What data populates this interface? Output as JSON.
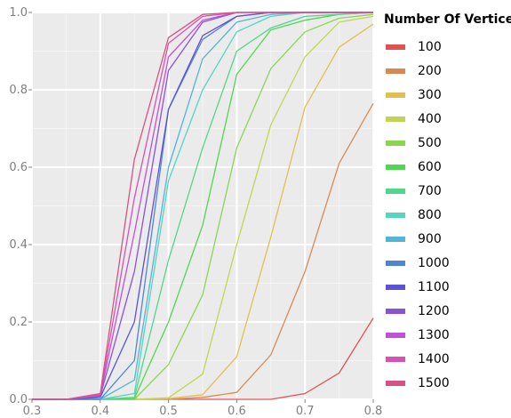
{
  "chart_data": {
    "type": "line",
    "title": "",
    "xlabel": "",
    "ylabel": "",
    "xlim": [
      0.3,
      0.8
    ],
    "ylim": [
      0.0,
      1.0
    ],
    "grid": true,
    "legend_position": "right",
    "legend_title": "Number Of Vertices",
    "x_ticks": [
      "0.3",
      "0.4",
      "0.5",
      "0.6",
      "0.7",
      "0.8"
    ],
    "y_ticks": [
      "0.0",
      "0.2",
      "0.4",
      "0.6",
      "0.8",
      "1.0"
    ],
    "x": [
      0.3,
      0.35,
      0.4,
      0.45,
      0.5,
      0.55,
      0.6,
      0.65,
      0.7,
      0.75,
      0.8
    ],
    "series": [
      {
        "name": "100",
        "color": "#e05252",
        "values": [
          0,
          0,
          0,
          0,
          0,
          0,
          0,
          0,
          0.015,
          0.068,
          0.21
        ]
      },
      {
        "name": "200",
        "color": "#d98a52",
        "values": [
          0,
          0,
          0,
          0,
          0,
          0.005,
          0.018,
          0.115,
          0.33,
          0.61,
          0.765
        ]
      },
      {
        "name": "300",
        "color": "#e0c052",
        "values": [
          0,
          0,
          0,
          0,
          0.002,
          0.012,
          0.11,
          0.42,
          0.755,
          0.91,
          0.97
        ]
      },
      {
        "name": "400",
        "color": "#c0d652",
        "values": [
          0,
          0,
          0,
          0,
          0.004,
          0.065,
          0.4,
          0.71,
          0.885,
          0.975,
          0.99
        ]
      },
      {
        "name": "500",
        "color": "#8ad652",
        "values": [
          0,
          0,
          0,
          0,
          0.09,
          0.27,
          0.65,
          0.855,
          0.95,
          0.985,
          0.995
        ]
      },
      {
        "name": "600",
        "color": "#52d652",
        "values": [
          0,
          0,
          0,
          0.002,
          0.2,
          0.45,
          0.84,
          0.955,
          0.98,
          0.995,
          1.0
        ]
      },
      {
        "name": "700",
        "color": "#52d68a",
        "values": [
          0,
          0,
          0,
          0.005,
          0.36,
          0.65,
          0.9,
          0.96,
          0.99,
          0.995,
          1.0
        ]
      },
      {
        "name": "800",
        "color": "#52d6c0",
        "values": [
          0,
          0,
          0,
          0.015,
          0.565,
          0.8,
          0.95,
          0.99,
          1.0,
          1.0,
          1.0
        ]
      },
      {
        "name": "900",
        "color": "#52b4d6",
        "values": [
          0,
          0,
          0,
          0.05,
          0.6,
          0.88,
          0.975,
          0.995,
          1.0,
          1.0,
          1.0
        ]
      },
      {
        "name": "1000",
        "color": "#5284d6",
        "values": [
          0,
          0,
          0,
          0.1,
          0.75,
          0.93,
          0.99,
          1.0,
          1.0,
          1.0,
          1.0
        ]
      },
      {
        "name": "1100",
        "color": "#5b52d6",
        "values": [
          0,
          0,
          0.005,
          0.2,
          0.75,
          0.94,
          0.99,
          1.0,
          1.0,
          1.0,
          1.0
        ]
      },
      {
        "name": "1200",
        "color": "#8a52d6",
        "values": [
          0,
          0,
          0.008,
          0.33,
          0.85,
          0.975,
          1.0,
          1.0,
          1.0,
          1.0,
          1.0
        ]
      },
      {
        "name": "1300",
        "color": "#c052d6",
        "values": [
          0,
          0,
          0.01,
          0.43,
          0.885,
          0.98,
          1.0,
          1.0,
          1.0,
          1.0,
          1.0
        ]
      },
      {
        "name": "1400",
        "color": "#d652b4",
        "values": [
          0,
          0,
          0.012,
          0.52,
          0.92,
          0.99,
          1.0,
          1.0,
          1.0,
          1.0,
          1.0
        ]
      },
      {
        "name": "1500",
        "color": "#d65284",
        "values": [
          0,
          0,
          0.015,
          0.62,
          0.935,
          0.995,
          1.0,
          1.0,
          1.0,
          1.0,
          1.0
        ]
      }
    ]
  }
}
